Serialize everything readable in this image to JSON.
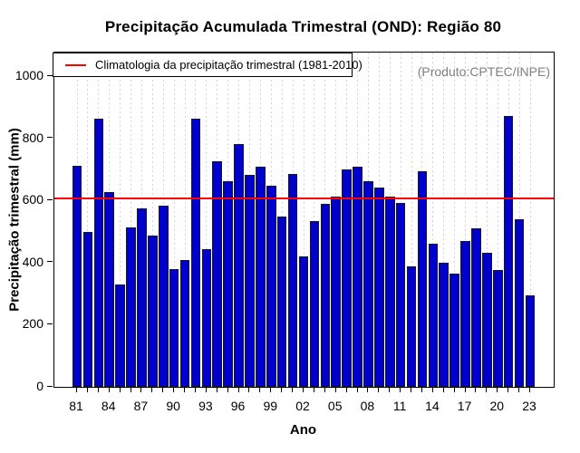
{
  "title": "Precipitação Acumulada Trimestral (OND): Região 80",
  "produto_note": "(Produto:CPTEC/INPE)",
  "legend": {
    "label": "Climatologia da precipitação trimestral (1981-2010)"
  },
  "colors": {
    "bar_fill": "#0000CD",
    "bar_border": "#1A1A1A",
    "climatology_line": "#FF0000",
    "grid": "#D4D4D4",
    "note_gray": "#808080"
  },
  "chart_data": {
    "type": "bar",
    "title": "Precipitação Acumulada Trimestral (OND): Região 80",
    "xlabel": "Ano",
    "ylabel": "Precipitação trimestral (mm)",
    "ylim": [
      0,
      1077
    ],
    "grid": "vertical-dashed",
    "legend_position": "top-left",
    "categories": [
      1981,
      1982,
      1983,
      1984,
      1985,
      1986,
      1987,
      1988,
      1989,
      1990,
      1991,
      1992,
      1993,
      1994,
      1995,
      1996,
      1997,
      1998,
      1999,
      2000,
      2001,
      2002,
      2003,
      2004,
      2005,
      2006,
      2007,
      2008,
      2009,
      2010,
      2011,
      2012,
      2013,
      2014,
      2015,
      2016,
      2017,
      2018,
      2019,
      2020,
      2021,
      2022,
      2023
    ],
    "values": [
      713,
      500,
      863,
      628,
      331,
      514,
      574,
      486,
      584,
      380,
      408,
      864,
      445,
      727,
      663,
      783,
      683,
      708,
      648,
      549,
      687,
      421,
      535,
      589,
      612,
      701,
      708,
      664,
      642,
      612,
      593,
      388,
      694,
      461,
      399,
      364,
      470,
      511,
      433,
      376,
      872,
      540,
      295
    ],
    "climatology_value": 606,
    "y_ticks": [
      0,
      200,
      400,
      600,
      800,
      1000
    ],
    "x_tick_labels": [
      "81",
      "84",
      "87",
      "90",
      "93",
      "96",
      "99",
      "02",
      "05",
      "08",
      "11",
      "14",
      "17",
      "20",
      "23"
    ],
    "x_tick_step": 3
  }
}
